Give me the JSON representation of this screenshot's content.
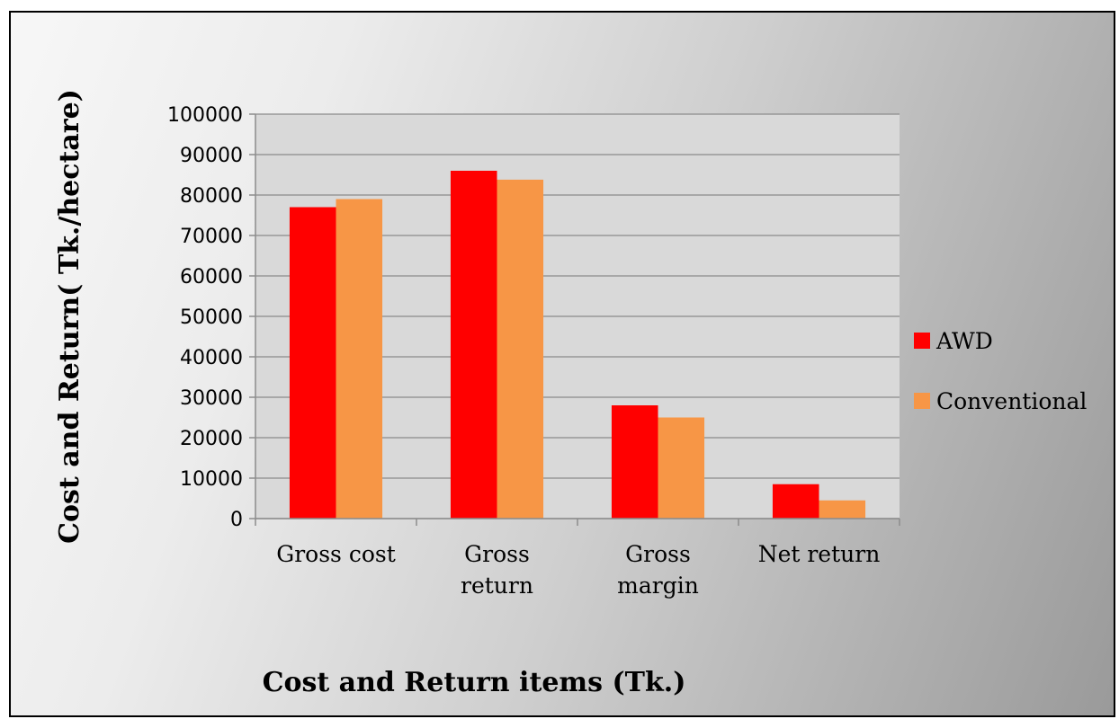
{
  "chart_data": {
    "type": "bar",
    "title": "",
    "xlabel": "Cost and Return items (Tk.)",
    "ylabel": "Cost and Return( Tk./hectare)",
    "categories": [
      [
        "Gross cost"
      ],
      [
        "Gross",
        "return"
      ],
      [
        "Gross",
        "margin"
      ],
      [
        "Net return"
      ]
    ],
    "series": [
      {
        "name": "AWD",
        "color": "#ff0000",
        "values": [
          77000,
          86000,
          28000,
          8500
        ]
      },
      {
        "name": "Conventional",
        "color": "#f79646",
        "values": [
          79000,
          83800,
          25000,
          4500
        ]
      }
    ],
    "ylim": [
      0,
      100000
    ],
    "yticks": [
      "0",
      "10000",
      "20000",
      "30000",
      "40000",
      "50000",
      "60000",
      "70000",
      "80000",
      "90000",
      "100000"
    ],
    "grid": true,
    "legend_position": "right",
    "colors": {
      "plot_background": "#d9d9d9",
      "gridline": "#8c8c8c",
      "axis": "#8c8c8c"
    }
  }
}
